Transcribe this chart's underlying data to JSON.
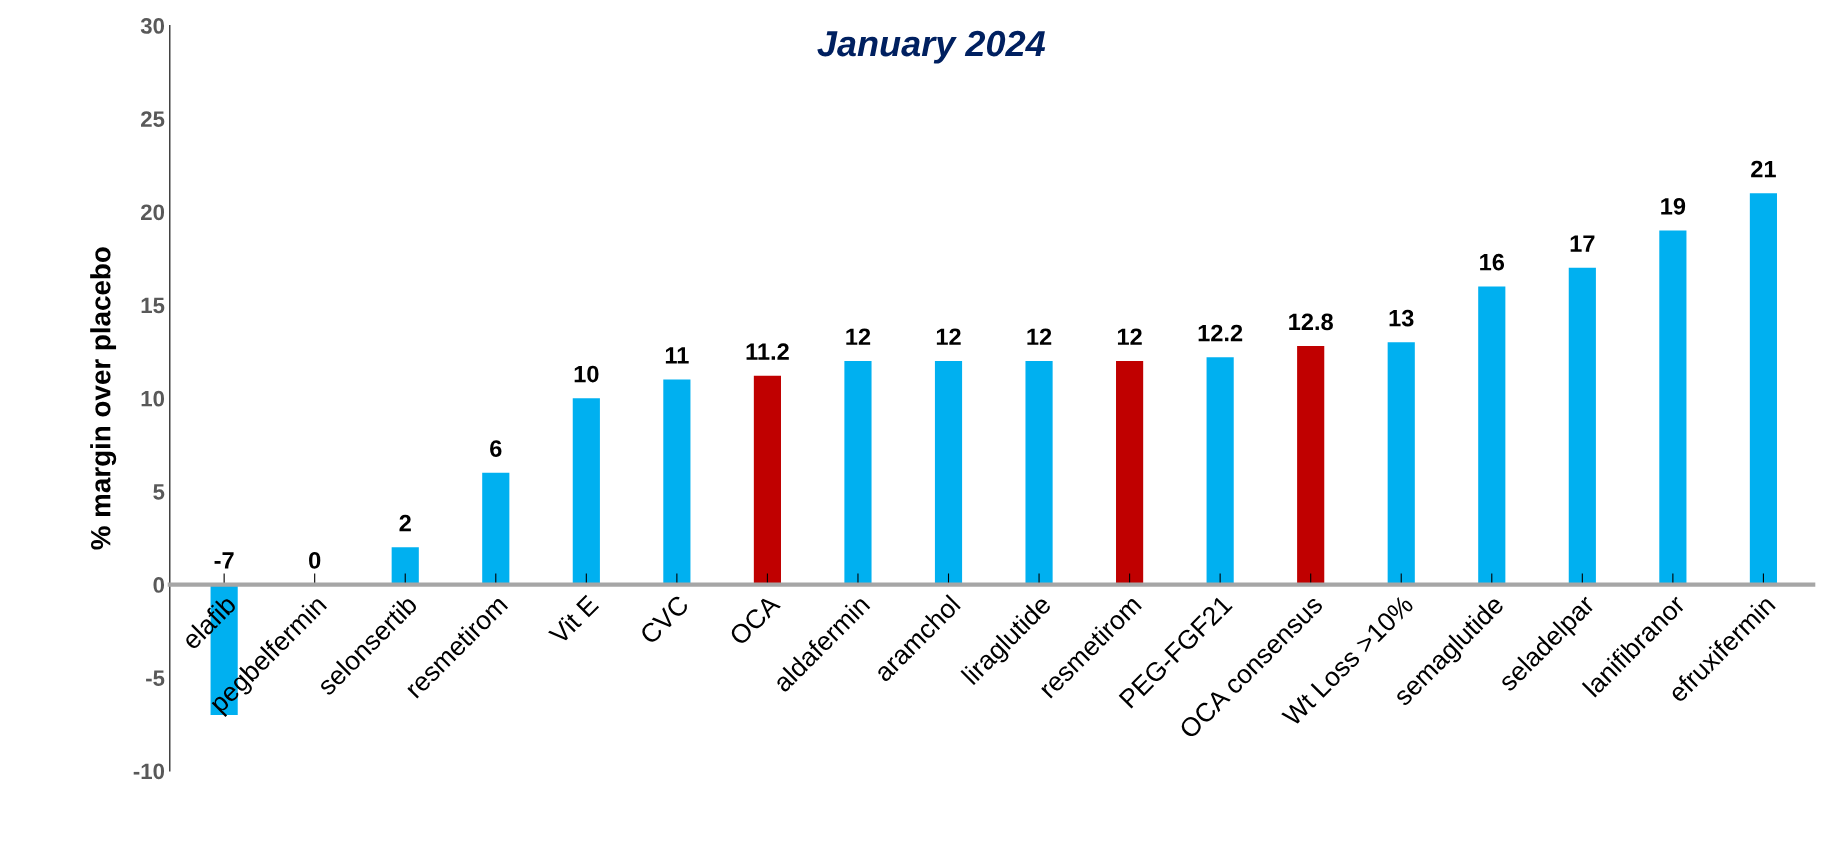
{
  "chart_data": {
    "type": "bar",
    "title": "January 2024",
    "ylabel": "% margin over placebo",
    "categories": [
      "elafib",
      "pegbelfermin",
      "selonsertib",
      "resmetirom",
      "Vit E",
      "CVC",
      "OCA",
      "aldafermin",
      "aramchol",
      "liraglutide",
      "resmetirom",
      "PEG-FGF21",
      "OCA consensus",
      "Wt Loss >10%",
      "semaglutide",
      "seladelpar",
      "lanifibranor",
      "efruxifermin"
    ],
    "values": [
      -7,
      0,
      2,
      6,
      10,
      11,
      11.2,
      12,
      12,
      12,
      12,
      12.2,
      12.8,
      13,
      16,
      17,
      19,
      21
    ],
    "colors": [
      "#00b0f0",
      "#00b0f0",
      "#00b0f0",
      "#00b0f0",
      "#00b0f0",
      "#00b0f0",
      "#c00000",
      "#00b0f0",
      "#00b0f0",
      "#00b0f0",
      "#c00000",
      "#00b0f0",
      "#c00000",
      "#00b0f0",
      "#00b0f0",
      "#00b0f0",
      "#00b0f0",
      "#00b0f0"
    ],
    "ylim": [
      -10,
      30
    ],
    "yticks": [
      -10,
      -5,
      0,
      5,
      10,
      15,
      20,
      25,
      30
    ],
    "grid": false,
    "legend": false,
    "data_labels": true
  }
}
